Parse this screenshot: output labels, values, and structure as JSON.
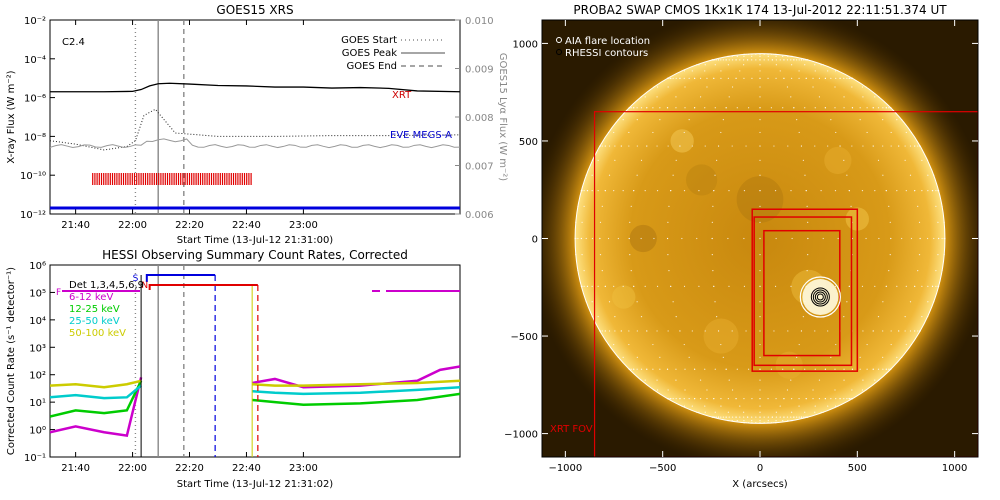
{
  "chart_data": [
    {
      "type": "line",
      "title": "GOES15 XRS",
      "xlabel": "Start Time (13-Jul-12 21:31:00)",
      "ylabel": "X-ray Flux (W m⁻²)",
      "ylabel_right": "GOES15 Lyα Flux (W m⁻²)",
      "flare_class": "C2.4",
      "x_ticks": [
        "21:40",
        "22:00",
        "22:20",
        "22:40",
        "23:00"
      ],
      "y_ticks": [
        "10⁻²",
        "10⁻⁴",
        "10⁻⁶",
        "10⁻⁸",
        "10⁻¹⁰",
        "10⁻¹²"
      ],
      "y_ticks_right": [
        "0.010",
        "0.009",
        "0.008",
        "0.007",
        "0.006"
      ],
      "y_scale": "log",
      "ylim": [
        1e-12,
        0.01
      ],
      "ylim_right": [
        0.006,
        0.01
      ],
      "xlim": [
        "21:31",
        "23:55"
      ],
      "legend": [
        {
          "label": "GOES Start",
          "style": "dotted"
        },
        {
          "label": "GOES Peak",
          "style": "solid"
        },
        {
          "label": "GOES End",
          "style": "dashed"
        }
      ],
      "vlines": {
        "start": "22:01",
        "peak": "22:09",
        "end": "22:18"
      },
      "series": [
        {
          "name": "XRT",
          "color": "#cc0000",
          "x": [
            "21:31",
            "21:50",
            "22:00",
            "22:03",
            "22:06",
            "22:09",
            "22:13",
            "22:20",
            "22:30",
            "22:40",
            "22:50",
            "23:00",
            "23:10",
            "23:20",
            "23:30",
            "23:40",
            "23:55"
          ],
          "y": [
            2e-06,
            2e-06,
            2.1e-06,
            2.6e-06,
            4e-06,
            5.2e-06,
            5.5e-06,
            5e-06,
            4.2e-06,
            4e-06,
            3.5e-06,
            3.5e-06,
            3.1e-06,
            3.3e-06,
            3e-06,
            2.2e-06,
            2e-06
          ]
        },
        {
          "name": "EVE MEGS-A",
          "color": "#0000cc",
          "x": [
            "21:31",
            "21:40",
            "21:50",
            "21:58",
            "22:01",
            "22:04",
            "22:08",
            "22:15",
            "22:30",
            "22:50",
            "23:10",
            "23:30",
            "23:55"
          ],
          "y": [
            6e-09,
            4e-09,
            2e-09,
            3e-09,
            6e-09,
            1.2e-07,
            2.5e-07,
            1.5e-08,
            1e-08,
            1e-08,
            1.1e-08,
            1.1e-08,
            1.2e-08
          ]
        }
      ],
      "hessi_coverage": [
        "21:46",
        "22:42"
      ]
    },
    {
      "type": "line",
      "title": "HESSI Observing Summary Count Rates, Corrected",
      "xlabel": "Start Time (13-Jul-12 21:31:02)",
      "ylabel": "Corrected Count Rate (s⁻¹ detector⁻¹)",
      "detectors": "Det 1,3,4,5,6,9",
      "x_ticks": [
        "21:40",
        "22:00",
        "22:20",
        "22:40",
        "23:00"
      ],
      "y_ticks": [
        "10⁶",
        "10⁵",
        "10⁴",
        "10³",
        "10²",
        "10¹",
        "10⁰",
        "10⁻¹"
      ],
      "y_scale": "log",
      "ylim": [
        0.1,
        1000000.0
      ],
      "flags": [
        "S",
        "N",
        "F"
      ],
      "series": [
        {
          "name": "6-12 keV",
          "color": "#cc00cc",
          "x": [
            "21:31",
            "21:40",
            "21:50",
            "21:58",
            "22:03",
            "22:42",
            "22:50",
            "23:00",
            "23:20",
            "23:40",
            "23:48",
            "23:55"
          ],
          "y": [
            0.8,
            1.3,
            0.8,
            0.6,
            80,
            50,
            70,
            35,
            40,
            60,
            150,
            200
          ]
        },
        {
          "name": "12-25 keV",
          "color": "#00cc00",
          "x": [
            "21:31",
            "21:40",
            "21:50",
            "21:58",
            "22:03",
            "22:42",
            "22:50",
            "23:00",
            "23:20",
            "23:40",
            "23:55"
          ],
          "y": [
            3,
            5,
            4,
            5,
            60,
            12,
            10,
            8,
            9,
            12,
            20
          ]
        },
        {
          "name": "25-50 keV",
          "color": "#00cccc",
          "x": [
            "21:31",
            "21:40",
            "21:50",
            "21:58",
            "22:03",
            "22:42",
            "22:50",
            "23:00",
            "23:20",
            "23:40",
            "23:55"
          ],
          "y": [
            15,
            18,
            14,
            15,
            40,
            25,
            22,
            20,
            22,
            28,
            35
          ]
        },
        {
          "name": "50-100 keV",
          "color": "#cccc00",
          "x": [
            "21:31",
            "21:40",
            "21:50",
            "21:58",
            "22:03",
            "22:42",
            "22:50",
            "23:00",
            "23:20",
            "23:40",
            "23:55"
          ],
          "y": [
            40,
            45,
            35,
            45,
            60,
            45,
            40,
            40,
            45,
            50,
            60
          ]
        }
      ]
    },
    {
      "type": "scatter",
      "title": "PROBA2 SWAP CMOS 1Kx1K 174 13-Jul-2012 22:11:51.374 UT",
      "xlabel": "X (arcsecs)",
      "ylabel": "Y (arcsecs)",
      "x_ticks": [
        "−1000",
        "−500",
        "0",
        "500",
        "1000"
      ],
      "y_ticks": [
        "1000",
        "500",
        "0",
        "−500",
        "−1000"
      ],
      "xlim": [
        -1120,
        1120
      ],
      "ylim": [
        -1120,
        1120
      ],
      "legend": [
        "AIA flare location",
        "RHESSI contours"
      ],
      "fov_label": "XRT FOV",
      "solar_radius": 950,
      "xrt_fov": [
        -850,
        1120,
        650,
        -1120
      ],
      "boxes": [
        {
          "x1": -40,
          "x2": 500,
          "y1": 150,
          "y2": -680
        },
        {
          "x1": -30,
          "x2": 470,
          "y1": 110,
          "y2": -650
        },
        {
          "x1": 20,
          "x2": 410,
          "y1": 40,
          "y2": -600
        }
      ],
      "flare_location": [
        310,
        -300
      ]
    }
  ]
}
